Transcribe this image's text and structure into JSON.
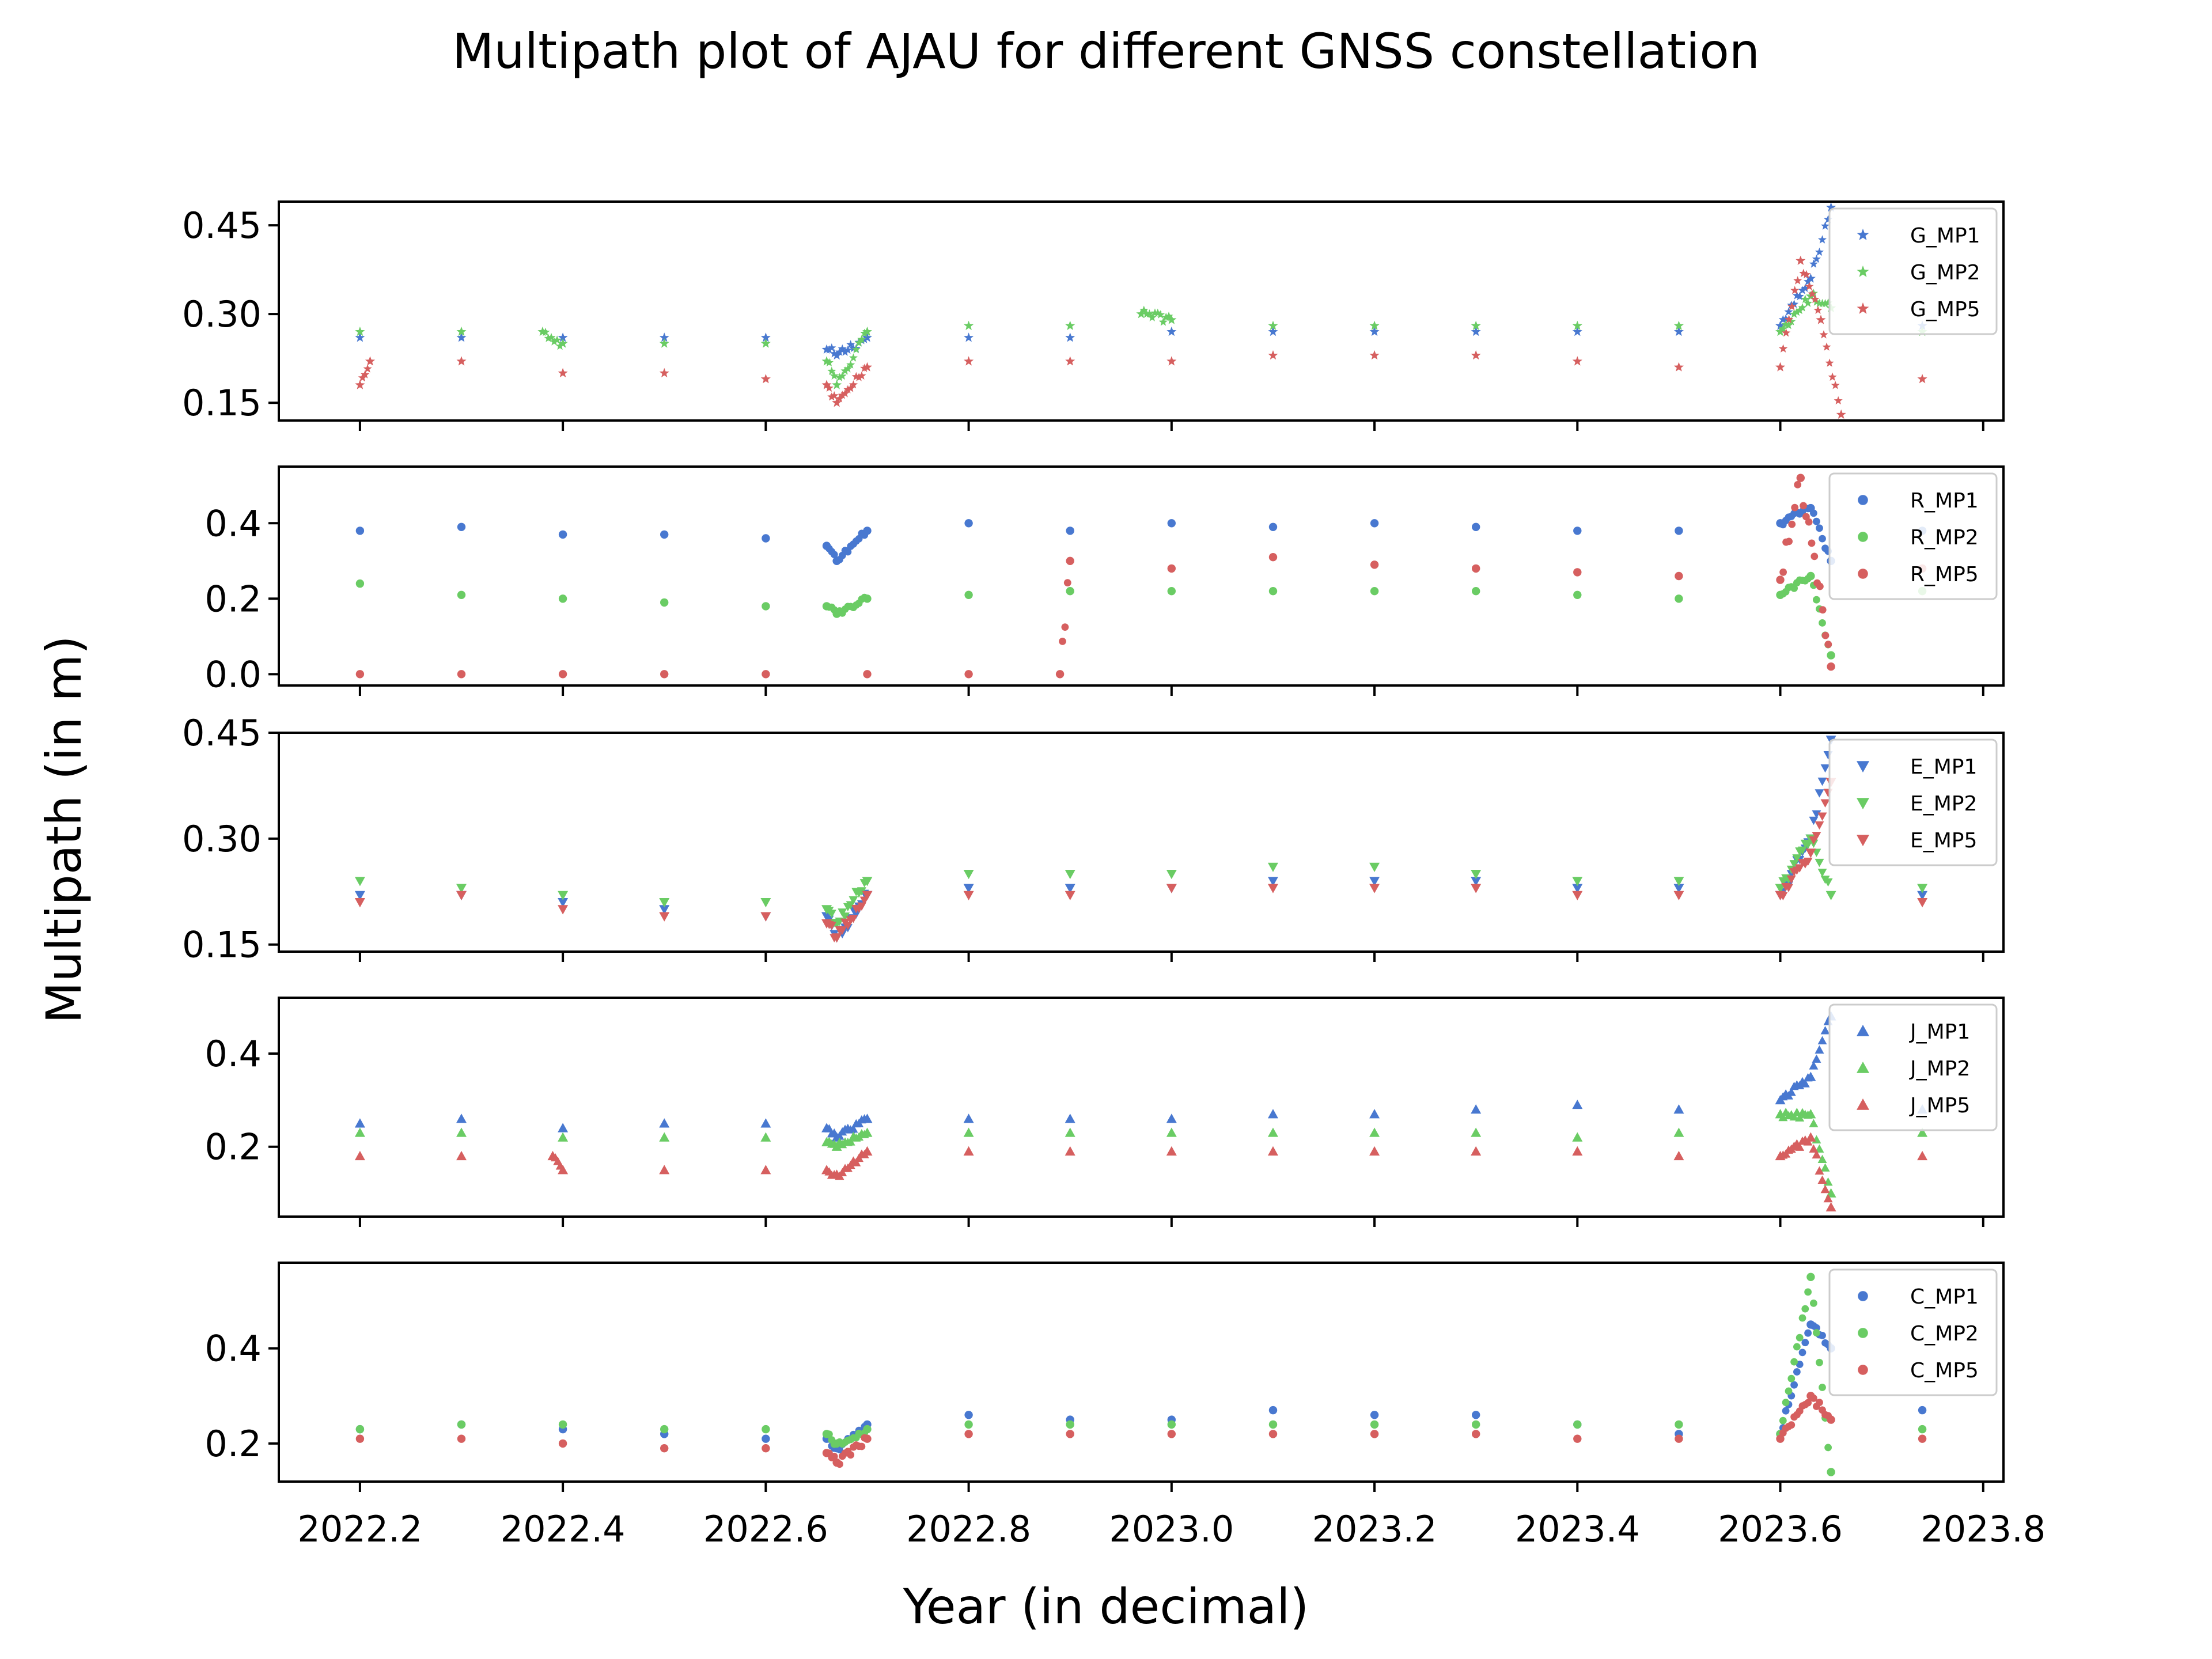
{
  "figure": {
    "title": "Multipath plot of AJAU for different GNSS constellation",
    "xlabel": "Year (in decimal)",
    "ylabel": "Multipath (in m)"
  },
  "colors": {
    "mp1": "#4878d0",
    "mp2": "#6acc64",
    "mp5": "#d65f5f"
  },
  "chart_data": [
    {
      "type": "scatter",
      "constellation": "G",
      "marker": "star",
      "xlim": [
        2022.12,
        2023.82
      ],
      "ylim": [
        0.12,
        0.49
      ],
      "yticks": [
        0.15,
        0.3,
        0.45
      ],
      "ytick_labels": [
        "0.15",
        "0.30",
        "0.45"
      ],
      "xticks": [
        2022.2,
        2022.4,
        2022.6,
        2022.8,
        2023.0,
        2023.2,
        2023.4,
        2023.6,
        2023.8
      ],
      "legend_loc": "upper right",
      "series": [
        {
          "name": "G_MP1",
          "color": "#4878d0",
          "x": [
            2022.2,
            2022.3,
            2022.4,
            2022.5,
            2022.6,
            2022.66,
            2022.67,
            2022.7,
            2022.8,
            2022.9,
            2023.0,
            2023.1,
            2023.2,
            2023.3,
            2023.4,
            2023.5,
            2023.6,
            2023.63,
            2023.65,
            2023.74
          ],
          "y": [
            0.26,
            0.26,
            0.26,
            0.26,
            0.26,
            0.24,
            0.23,
            0.26,
            0.26,
            0.26,
            0.27,
            0.27,
            0.27,
            0.27,
            0.27,
            0.27,
            0.28,
            0.36,
            0.48,
            0.28
          ]
        },
        {
          "name": "G_MP2",
          "color": "#6acc64",
          "x": [
            2022.2,
            2022.3,
            2022.38,
            2022.4,
            2022.5,
            2022.6,
            2022.66,
            2022.67,
            2022.7,
            2022.8,
            2022.9,
            2022.97,
            2023.0,
            2023.1,
            2023.2,
            2023.3,
            2023.4,
            2023.5,
            2023.6,
            2023.63,
            2023.65,
            2023.74
          ],
          "y": [
            0.27,
            0.27,
            0.27,
            0.25,
            0.25,
            0.25,
            0.22,
            0.18,
            0.27,
            0.28,
            0.28,
            0.3,
            0.29,
            0.28,
            0.28,
            0.28,
            0.28,
            0.28,
            0.27,
            0.33,
            0.31,
            0.27
          ]
        },
        {
          "name": "G_MP5",
          "color": "#d65f5f",
          "x": [
            2022.2,
            2022.21,
            2022.3,
            2022.4,
            2022.5,
            2022.6,
            2022.66,
            2022.67,
            2022.7,
            2022.8,
            2022.9,
            2023.0,
            2023.1,
            2023.2,
            2023.3,
            2023.4,
            2023.5,
            2023.6,
            2023.62,
            2023.64,
            2023.66,
            2023.74
          ],
          "y": [
            0.18,
            0.22,
            0.22,
            0.2,
            0.2,
            0.19,
            0.18,
            0.15,
            0.21,
            0.22,
            0.22,
            0.22,
            0.23,
            0.23,
            0.23,
            0.22,
            0.21,
            0.21,
            0.39,
            0.29,
            0.13,
            0.19
          ]
        }
      ]
    },
    {
      "type": "scatter",
      "constellation": "R",
      "marker": "circle",
      "xlim": [
        2022.12,
        2023.82
      ],
      "ylim": [
        -0.03,
        0.55
      ],
      "yticks": [
        0.0,
        0.2,
        0.4
      ],
      "ytick_labels": [
        "0.0",
        "0.2",
        "0.4"
      ],
      "xticks": [
        2022.2,
        2022.4,
        2022.6,
        2022.8,
        2023.0,
        2023.2,
        2023.4,
        2023.6,
        2023.8
      ],
      "legend_loc": "upper right",
      "series": [
        {
          "name": "R_MP1",
          "color": "#4878d0",
          "x": [
            2022.2,
            2022.3,
            2022.4,
            2022.5,
            2022.6,
            2022.66,
            2022.67,
            2022.7,
            2022.8,
            2022.9,
            2023.0,
            2023.1,
            2023.2,
            2023.3,
            2023.4,
            2023.5,
            2023.6,
            2023.63,
            2023.65,
            2023.74
          ],
          "y": [
            0.38,
            0.39,
            0.37,
            0.37,
            0.36,
            0.34,
            0.3,
            0.38,
            0.4,
            0.38,
            0.4,
            0.39,
            0.4,
            0.39,
            0.38,
            0.38,
            0.4,
            0.44,
            0.3,
            0.38
          ]
        },
        {
          "name": "R_MP2",
          "color": "#6acc64",
          "x": [
            2022.2,
            2022.3,
            2022.4,
            2022.5,
            2022.6,
            2022.66,
            2022.67,
            2022.7,
            2022.8,
            2022.9,
            2023.0,
            2023.1,
            2023.2,
            2023.3,
            2023.4,
            2023.5,
            2023.6,
            2023.63,
            2023.65,
            2023.74
          ],
          "y": [
            0.24,
            0.21,
            0.2,
            0.19,
            0.18,
            0.18,
            0.16,
            0.2,
            0.21,
            0.22,
            0.22,
            0.22,
            0.22,
            0.22,
            0.21,
            0.2,
            0.21,
            0.26,
            0.05,
            0.22
          ]
        },
        {
          "name": "R_MP5",
          "color": "#d65f5f",
          "x": [
            2022.2,
            2022.3,
            2022.4,
            2022.5,
            2022.6,
            2022.7,
            2022.8,
            2022.89,
            2022.9,
            2023.0,
            2023.1,
            2023.2,
            2023.3,
            2023.4,
            2023.5,
            2023.6,
            2023.62,
            2023.65,
            2023.74
          ],
          "y": [
            0.0,
            0.0,
            0.0,
            0.0,
            0.0,
            0.0,
            0.0,
            0.0,
            0.3,
            0.28,
            0.31,
            0.29,
            0.28,
            0.27,
            0.26,
            0.25,
            0.52,
            0.02,
            0.28
          ]
        }
      ]
    },
    {
      "type": "scatter",
      "constellation": "E",
      "marker": "triangle-down",
      "xlim": [
        2022.12,
        2023.82
      ],
      "ylim": [
        0.14,
        0.45
      ],
      "yticks": [
        0.15,
        0.3,
        0.45
      ],
      "ytick_labels": [
        "0.15",
        "0.30",
        "0.45"
      ],
      "xticks": [
        2022.2,
        2022.4,
        2022.6,
        2022.8,
        2023.0,
        2023.2,
        2023.4,
        2023.6,
        2023.8
      ],
      "legend_loc": "upper right",
      "series": [
        {
          "name": "E_MP1",
          "color": "#4878d0",
          "x": [
            2022.2,
            2022.3,
            2022.4,
            2022.5,
            2022.6,
            2022.66,
            2022.67,
            2022.7,
            2022.8,
            2022.9,
            2023.0,
            2023.1,
            2023.2,
            2023.3,
            2023.4,
            2023.5,
            2023.6,
            2023.63,
            2023.65,
            2023.74
          ],
          "y": [
            0.22,
            0.22,
            0.21,
            0.2,
            0.19,
            0.19,
            0.16,
            0.22,
            0.23,
            0.23,
            0.23,
            0.24,
            0.24,
            0.24,
            0.23,
            0.23,
            0.22,
            0.3,
            0.44,
            0.22
          ]
        },
        {
          "name": "E_MP2",
          "color": "#6acc64",
          "x": [
            2022.2,
            2022.3,
            2022.4,
            2022.5,
            2022.6,
            2022.66,
            2022.67,
            2022.7,
            2022.8,
            2022.9,
            2023.0,
            2023.1,
            2023.2,
            2023.3,
            2023.4,
            2023.5,
            2023.6,
            2023.63,
            2023.65,
            2023.74
          ],
          "y": [
            0.24,
            0.23,
            0.22,
            0.21,
            0.21,
            0.2,
            0.18,
            0.24,
            0.25,
            0.25,
            0.25,
            0.26,
            0.26,
            0.25,
            0.24,
            0.24,
            0.23,
            0.3,
            0.22,
            0.23
          ]
        },
        {
          "name": "E_MP5",
          "color": "#d65f5f",
          "x": [
            2022.2,
            2022.3,
            2022.4,
            2022.5,
            2022.6,
            2022.66,
            2022.67,
            2022.7,
            2022.8,
            2022.9,
            2023.0,
            2023.1,
            2023.2,
            2023.3,
            2023.4,
            2023.5,
            2023.6,
            2023.63,
            2023.65,
            2023.74
          ],
          "y": [
            0.21,
            0.22,
            0.2,
            0.19,
            0.19,
            0.18,
            0.16,
            0.22,
            0.22,
            0.22,
            0.23,
            0.23,
            0.23,
            0.23,
            0.22,
            0.22,
            0.22,
            0.28,
            0.38,
            0.21
          ]
        }
      ]
    },
    {
      "type": "scatter",
      "constellation": "J",
      "marker": "triangle-up",
      "xlim": [
        2022.12,
        2023.82
      ],
      "ylim": [
        0.05,
        0.52
      ],
      "yticks": [
        0.2,
        0.4
      ],
      "ytick_labels": [
        "0.2",
        "0.4"
      ],
      "xticks": [
        2022.2,
        2022.4,
        2022.6,
        2022.8,
        2023.0,
        2023.2,
        2023.4,
        2023.6,
        2023.8
      ],
      "legend_loc": "upper right",
      "series": [
        {
          "name": "J_MP1",
          "color": "#4878d0",
          "x": [
            2022.2,
            2022.3,
            2022.4,
            2022.5,
            2022.6,
            2022.66,
            2022.67,
            2022.7,
            2022.8,
            2022.9,
            2023.0,
            2023.1,
            2023.2,
            2023.3,
            2023.4,
            2023.5,
            2023.6,
            2023.63,
            2023.65,
            2023.74
          ],
          "y": [
            0.25,
            0.26,
            0.24,
            0.25,
            0.25,
            0.24,
            0.22,
            0.26,
            0.26,
            0.26,
            0.26,
            0.27,
            0.27,
            0.28,
            0.29,
            0.28,
            0.3,
            0.35,
            0.48,
            0.28
          ]
        },
        {
          "name": "J_MP2",
          "color": "#6acc64",
          "x": [
            2022.2,
            2022.3,
            2022.4,
            2022.5,
            2022.6,
            2022.66,
            2022.67,
            2022.7,
            2022.8,
            2022.9,
            2023.0,
            2023.1,
            2023.2,
            2023.3,
            2023.4,
            2023.5,
            2023.6,
            2023.63,
            2023.65,
            2023.74
          ],
          "y": [
            0.23,
            0.23,
            0.22,
            0.22,
            0.22,
            0.21,
            0.2,
            0.23,
            0.23,
            0.23,
            0.23,
            0.23,
            0.23,
            0.23,
            0.22,
            0.23,
            0.27,
            0.27,
            0.1,
            0.23
          ]
        },
        {
          "name": "J_MP5",
          "color": "#d65f5f",
          "x": [
            2022.2,
            2022.3,
            2022.39,
            2022.4,
            2022.5,
            2022.6,
            2022.66,
            2022.67,
            2022.7,
            2022.8,
            2022.9,
            2023.0,
            2023.1,
            2023.2,
            2023.3,
            2023.4,
            2023.5,
            2023.6,
            2023.63,
            2023.65,
            2023.74
          ],
          "y": [
            0.18,
            0.18,
            0.18,
            0.15,
            0.15,
            0.15,
            0.15,
            0.14,
            0.19,
            0.19,
            0.19,
            0.19,
            0.19,
            0.19,
            0.19,
            0.19,
            0.18,
            0.18,
            0.22,
            0.07,
            0.18
          ]
        }
      ]
    },
    {
      "type": "scatter",
      "constellation": "C",
      "marker": "circle",
      "xlim": [
        2022.12,
        2023.82
      ],
      "ylim": [
        0.12,
        0.58
      ],
      "yticks": [
        0.2,
        0.4
      ],
      "ytick_labels": [
        "0.2",
        "0.4"
      ],
      "xticks": [
        2022.2,
        2022.4,
        2022.6,
        2022.8,
        2023.0,
        2023.2,
        2023.4,
        2023.6,
        2023.8
      ],
      "legend_loc": "upper right",
      "series": [
        {
          "name": "C_MP1",
          "color": "#4878d0",
          "x": [
            2022.2,
            2022.3,
            2022.4,
            2022.5,
            2022.6,
            2022.66,
            2022.67,
            2022.7,
            2022.8,
            2022.9,
            2023.0,
            2023.1,
            2023.2,
            2023.3,
            2023.4,
            2023.5,
            2023.6,
            2023.63,
            2023.65,
            2023.74
          ],
          "y": [
            0.23,
            0.24,
            0.23,
            0.22,
            0.21,
            0.21,
            0.19,
            0.24,
            0.26,
            0.25,
            0.25,
            0.27,
            0.26,
            0.26,
            0.24,
            0.22,
            0.22,
            0.45,
            0.4,
            0.27
          ]
        },
        {
          "name": "C_MP2",
          "color": "#6acc64",
          "x": [
            2022.2,
            2022.3,
            2022.4,
            2022.5,
            2022.6,
            2022.66,
            2022.67,
            2022.7,
            2022.8,
            2022.9,
            2023.0,
            2023.1,
            2023.2,
            2023.3,
            2023.4,
            2023.5,
            2023.6,
            2023.63,
            2023.65,
            2023.74
          ],
          "y": [
            0.23,
            0.24,
            0.24,
            0.23,
            0.23,
            0.22,
            0.2,
            0.23,
            0.24,
            0.24,
            0.24,
            0.24,
            0.24,
            0.24,
            0.24,
            0.24,
            0.22,
            0.55,
            0.14,
            0.23
          ]
        },
        {
          "name": "C_MP5",
          "color": "#d65f5f",
          "x": [
            2022.2,
            2022.3,
            2022.4,
            2022.5,
            2022.6,
            2022.66,
            2022.67,
            2022.7,
            2022.8,
            2022.9,
            2023.0,
            2023.1,
            2023.2,
            2023.3,
            2023.4,
            2023.5,
            2023.6,
            2023.63,
            2023.65,
            2023.74
          ],
          "y": [
            0.21,
            0.21,
            0.2,
            0.19,
            0.19,
            0.18,
            0.16,
            0.21,
            0.22,
            0.22,
            0.22,
            0.22,
            0.22,
            0.22,
            0.21,
            0.21,
            0.21,
            0.3,
            0.25,
            0.21
          ]
        }
      ]
    }
  ]
}
